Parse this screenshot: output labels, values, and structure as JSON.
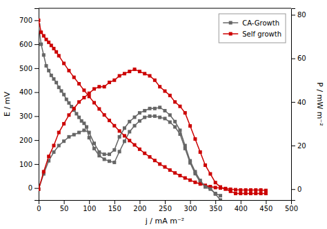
{
  "chart_data": {
    "type": "line",
    "xlabel": "j / mA m⁻²",
    "ylabel": "E / mV",
    "y2label": "P / mW m⁻²",
    "xlim": [
      0,
      500
    ],
    "ylim": [
      -50,
      750
    ],
    "y2lim": [
      -5,
      83
    ],
    "xticks": [
      0,
      50,
      100,
      150,
      200,
      250,
      300,
      350,
      400,
      450,
      500
    ],
    "yticks": [
      0,
      100,
      200,
      300,
      400,
      500,
      600,
      700
    ],
    "y2ticks": [
      0,
      20,
      40,
      60,
      80
    ],
    "grid": false,
    "legend": "upper right",
    "series": [
      {
        "name": "CA-Growth",
        "color": "#666666",
        "marker": "square",
        "line_style": "solid",
        "x": [
          0,
          5,
          10,
          15,
          20,
          25,
          30,
          35,
          40,
          45,
          50,
          55,
          60,
          65,
          70,
          75,
          80,
          85,
          90,
          95,
          100,
          110,
          120,
          130,
          140,
          150,
          160,
          170,
          180,
          190,
          200,
          210,
          220,
          230,
          240,
          250,
          260,
          270,
          280,
          290,
          300,
          310,
          320,
          330,
          340,
          350,
          360
        ],
        "values": [
          680,
          600,
          555,
          510,
          490,
          470,
          455,
          440,
          420,
          405,
          390,
          370,
          355,
          340,
          325,
          310,
          295,
          280,
          270,
          255,
          210,
          165,
          135,
          120,
          112,
          107,
          152,
          195,
          235,
          260,
          280,
          295,
          300,
          300,
          295,
          290,
          275,
          255,
          225,
          165,
          105,
          60,
          25,
          10,
          0,
          -25,
          -50
        ]
      },
      {
        "name": "Self growth",
        "color": "#cc0000",
        "marker": "square",
        "line_style": "solid",
        "x": [
          0,
          5,
          10,
          15,
          20,
          25,
          30,
          35,
          40,
          50,
          60,
          70,
          80,
          90,
          100,
          110,
          120,
          130,
          140,
          150,
          160,
          170,
          180,
          190,
          200,
          210,
          220,
          230,
          240,
          250,
          260,
          270,
          280,
          290,
          300,
          310,
          320,
          330,
          340,
          350,
          360,
          370,
          380,
          390,
          400,
          410,
          420,
          430,
          440,
          450
        ],
        "values": [
          700,
          650,
          635,
          620,
          608,
          595,
          582,
          568,
          552,
          520,
          490,
          462,
          435,
          408,
          382,
          356,
          330,
          305,
          282,
          260,
          238,
          218,
          198,
          180,
          162,
          145,
          130,
          115,
          100,
          88,
          75,
          63,
          52,
          42,
          33,
          24,
          17,
          11,
          6,
          2,
          0,
          -2,
          -5,
          -7,
          -8,
          -8,
          -8,
          -8,
          -8,
          -10
        ]
      },
      {
        "axis": "y2",
        "color": "#666666",
        "marker": "square",
        "line_style": "solid",
        "x": [
          0,
          10,
          20,
          30,
          40,
          50,
          60,
          70,
          80,
          90,
          100,
          110,
          120,
          130,
          140,
          150,
          160,
          170,
          180,
          190,
          200,
          210,
          220,
          230,
          240,
          250,
          260,
          270,
          280,
          290,
          300,
          310,
          320,
          330,
          340,
          350,
          360
        ],
        "values": [
          0,
          7,
          13,
          17,
          20,
          22,
          24,
          25,
          26,
          27,
          26,
          21,
          17,
          16,
          16,
          18,
          24,
          28,
          31,
          33,
          35,
          36,
          37,
          37,
          37.5,
          36,
          34,
          31,
          27,
          20,
          13,
          8,
          4,
          1,
          0,
          -2,
          -3
        ]
      },
      {
        "axis": "y2",
        "color": "#cc0000",
        "marker": "square",
        "line_style": "solid",
        "x": [
          0,
          10,
          20,
          30,
          40,
          50,
          60,
          70,
          80,
          90,
          100,
          110,
          120,
          130,
          140,
          150,
          160,
          170,
          180,
          190,
          200,
          210,
          220,
          230,
          240,
          250,
          260,
          270,
          280,
          290,
          300,
          310,
          320,
          330,
          340,
          350,
          360,
          370,
          380,
          390,
          400,
          410,
          420,
          430,
          440,
          450
        ],
        "values": [
          0,
          8,
          15,
          20,
          26,
          30,
          34,
          37,
          40,
          42,
          44,
          46,
          47,
          47,
          49,
          50,
          52,
          53,
          54,
          55,
          54,
          53,
          52,
          50,
          47,
          45,
          43,
          40,
          38,
          35,
          29,
          23,
          17,
          11,
          7,
          3,
          1,
          0,
          -1,
          -2,
          -2,
          -2,
          -2,
          -2,
          -2,
          -2
        ]
      }
    ]
  }
}
